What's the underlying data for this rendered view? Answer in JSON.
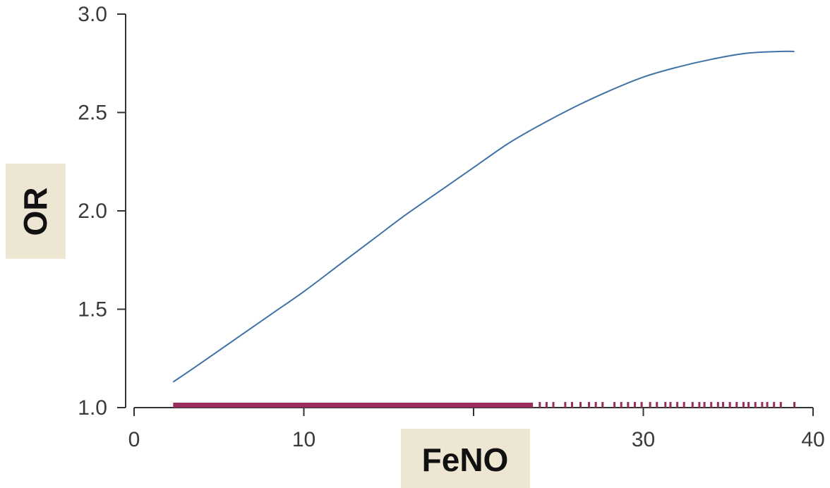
{
  "chart_data": {
    "type": "line",
    "title": "",
    "xlabel": "FeNO",
    "ylabel": "OR",
    "xlim": [
      0,
      40
    ],
    "ylim": [
      1.0,
      3.0
    ],
    "x_ticks": [
      {
        "value": 0,
        "label": "0"
      },
      {
        "value": 10,
        "label": "10"
      },
      {
        "value": 20,
        "label": ""
      },
      {
        "value": 30,
        "label": "30"
      },
      {
        "value": 40,
        "label": "40"
      }
    ],
    "y_ticks": [
      {
        "value": 1.0,
        "label": "1.0"
      },
      {
        "value": 1.5,
        "label": "1.5"
      },
      {
        "value": 2.0,
        "label": "2.0"
      },
      {
        "value": 2.5,
        "label": "2.5"
      },
      {
        "value": 3.0,
        "label": "3.0"
      }
    ],
    "series": [
      {
        "color": "#3f72a6",
        "x": [
          2.3,
          4,
          6,
          8,
          10,
          12,
          14,
          16,
          18,
          20,
          22,
          24,
          26,
          28,
          30,
          32,
          34,
          36,
          38,
          38.9
        ],
        "y": [
          1.13,
          1.23,
          1.35,
          1.47,
          1.59,
          1.72,
          1.85,
          1.98,
          2.1,
          2.22,
          2.34,
          2.44,
          2.53,
          2.61,
          2.68,
          2.73,
          2.77,
          2.8,
          2.81,
          2.81
        ]
      }
    ],
    "rug": {
      "color": "#9b2d5e",
      "dense_range": [
        2.3,
        23.5
      ],
      "ticks": [
        23.9,
        24.3,
        24.7,
        25.4,
        25.8,
        26.3,
        26.8,
        27.2,
        27.6,
        28.3,
        28.7,
        29.1,
        29.5,
        29.9,
        30.4,
        30.8,
        31.3,
        31.6,
        32.0,
        32.4,
        32.9,
        33.3,
        33.6,
        34.0,
        34.4,
        34.7,
        35.1,
        35.5,
        35.9,
        36.2,
        36.6,
        37.0,
        37.3,
        37.7,
        38.1,
        38.9
      ]
    },
    "grid": false,
    "legend": "none"
  },
  "colors": {
    "label_box": "#ece6d2",
    "axis": "#333333"
  }
}
